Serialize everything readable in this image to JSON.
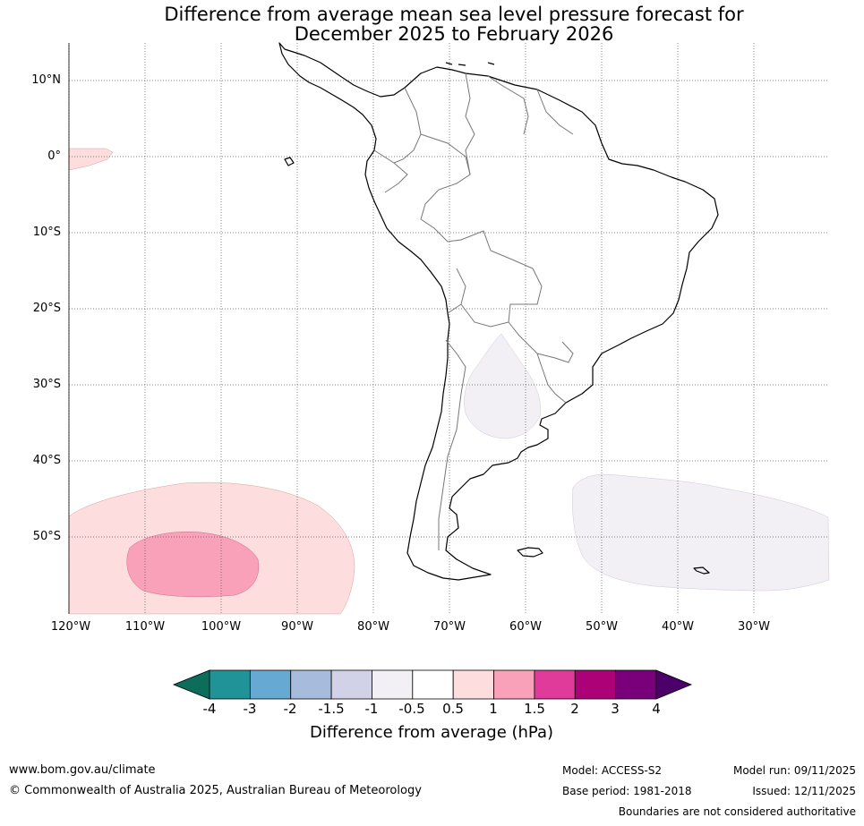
{
  "title_line1": "Difference from average mean sea level pressure forecast for",
  "title_line2": "December 2025 to February 2026",
  "lat_labels": [
    "10°N",
    "0°",
    "10°S",
    "20°S",
    "30°S",
    "40°S",
    "50°S"
  ],
  "lon_labels": [
    "120°W",
    "110°W",
    "100°W",
    "90°W",
    "80°W",
    "70°W",
    "60°W",
    "50°W",
    "40°W",
    "30°W"
  ],
  "colorbar": {
    "title": "Difference from average (hPa)",
    "tick_labels": [
      "-4",
      "-3",
      "-2",
      "-1.5",
      "-1",
      "-0.5",
      "0.5",
      "1",
      "1.5",
      "2",
      "3",
      "4"
    ],
    "bin_colors": [
      "#1f9398",
      "#66a9d3",
      "#a7bcdc",
      "#d1d2e7",
      "#f2eff5",
      "#ffffff",
      "#fddddd",
      "#f9a1b8",
      "#e03a9a",
      "#ad0178",
      "#79007a"
    ],
    "under_color": "#0c6d5b",
    "over_color": "#4b006a"
  },
  "anomaly_colors": {
    "pos_0_5_1": "#fddddd",
    "pos_1_1_5": "#f9a1b8",
    "neg_0_5_1": "#f2eff5"
  },
  "footer": {
    "website": "www.bom.gov.au/climate",
    "copyright": "© Commonwealth of Australia 2025, Australian Bureau of Meteorology",
    "model": "Model: ACCESS-S2",
    "base_period": "Base period: 1981-2018",
    "model_run": "Model run: 09/11/2025",
    "issued": "Issued: 12/11/2025",
    "disclaimer": "Boundaries are not considered authoritative"
  }
}
